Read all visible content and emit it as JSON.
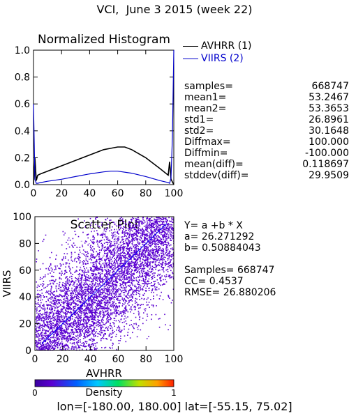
{
  "page_title": "VCI,  June 3 2015 (week 22)",
  "footer": {
    "lon_label": "lon=",
    "lon_range": "[-180.00, 180.00]",
    "lat_label": "lat=",
    "lat_range": "[-55.15, 75.02]"
  },
  "colors": {
    "avhrr": "#000000",
    "viirs": "#0000cc",
    "fit_line": "#0000ff",
    "scatter": "#5a00d0"
  },
  "stats": [
    {
      "label": "samples=",
      "value": "668747"
    },
    {
      "label": "mean1=",
      "value": "53.2467"
    },
    {
      "label": "mean2=",
      "value": "53.3653"
    },
    {
      "label": "std1=",
      "value": "26.8961"
    },
    {
      "label": "std2=",
      "value": "30.1648"
    },
    {
      "label": "Diffmax=",
      "value": "100.000"
    },
    {
      "label": "Diffmin=",
      "value": "-100.000"
    },
    {
      "label": "mean(diff)=",
      "value": "0.118697"
    },
    {
      "label": "stddev(diff)=",
      "value": "29.9509"
    }
  ],
  "regression": {
    "equation": "Y= a +b * X",
    "a": "a= 26.271292",
    "b": "b= 0.50884043",
    "samples": "Samples= 668747",
    "cc": "CC=  0.4537",
    "rmse": "RMSE= 26.880206"
  },
  "chart_data": [
    {
      "type": "line",
      "title": "Normalized Histogram",
      "xlim": [
        0,
        100
      ],
      "ylim": [
        0,
        1
      ],
      "x_ticks": [
        "0",
        "20",
        "40",
        "60",
        "80",
        "100"
      ],
      "y_ticks": [
        "0.0",
        "0.2",
        "0.4",
        "0.6",
        "0.8",
        "1.0"
      ],
      "legend_position": "right",
      "series": [
        {
          "name": "AVHRR (1)",
          "color": "#000000",
          "x": [
            0,
            1,
            2,
            3,
            5,
            10,
            20,
            30,
            40,
            50,
            55,
            60,
            65,
            70,
            80,
            90,
            96,
            97,
            98,
            99,
            100
          ],
          "y": [
            0.0,
            0.2,
            0.03,
            0.07,
            0.08,
            0.1,
            0.14,
            0.18,
            0.22,
            0.26,
            0.27,
            0.28,
            0.28,
            0.26,
            0.2,
            0.12,
            0.07,
            0.17,
            0.04,
            0.02,
            0.0
          ]
        },
        {
          "name": "VIIRS (2)",
          "color": "#0000cc",
          "x": [
            0,
            1,
            2,
            3,
            5,
            10,
            20,
            30,
            40,
            50,
            55,
            60,
            70,
            80,
            90,
            96,
            97,
            98,
            99,
            100
          ],
          "y": [
            0.6,
            0.04,
            0.01,
            0.01,
            0.015,
            0.025,
            0.04,
            0.06,
            0.08,
            0.095,
            0.1,
            0.1,
            0.085,
            0.06,
            0.03,
            0.015,
            0.01,
            0.05,
            0.35,
            1.0
          ]
        }
      ]
    },
    {
      "type": "scatter",
      "title": "Scatter Plot",
      "xlabel": "AVHRR",
      "ylabel": "VIIRS",
      "xlim": [
        0,
        100
      ],
      "ylim": [
        0,
        100
      ],
      "x_ticks": [
        "0",
        "20",
        "40",
        "60",
        "80",
        "100"
      ],
      "y_ticks": [
        "0",
        "20",
        "40",
        "60",
        "80",
        "100"
      ],
      "fit_line": {
        "a": 26.271292,
        "b": 0.50884043
      },
      "diagonal": [
        [
          5,
          5
        ],
        [
          95,
          95
        ]
      ],
      "colorbar": {
        "label": "Density",
        "min_label": "0",
        "max_label": "1"
      }
    }
  ]
}
